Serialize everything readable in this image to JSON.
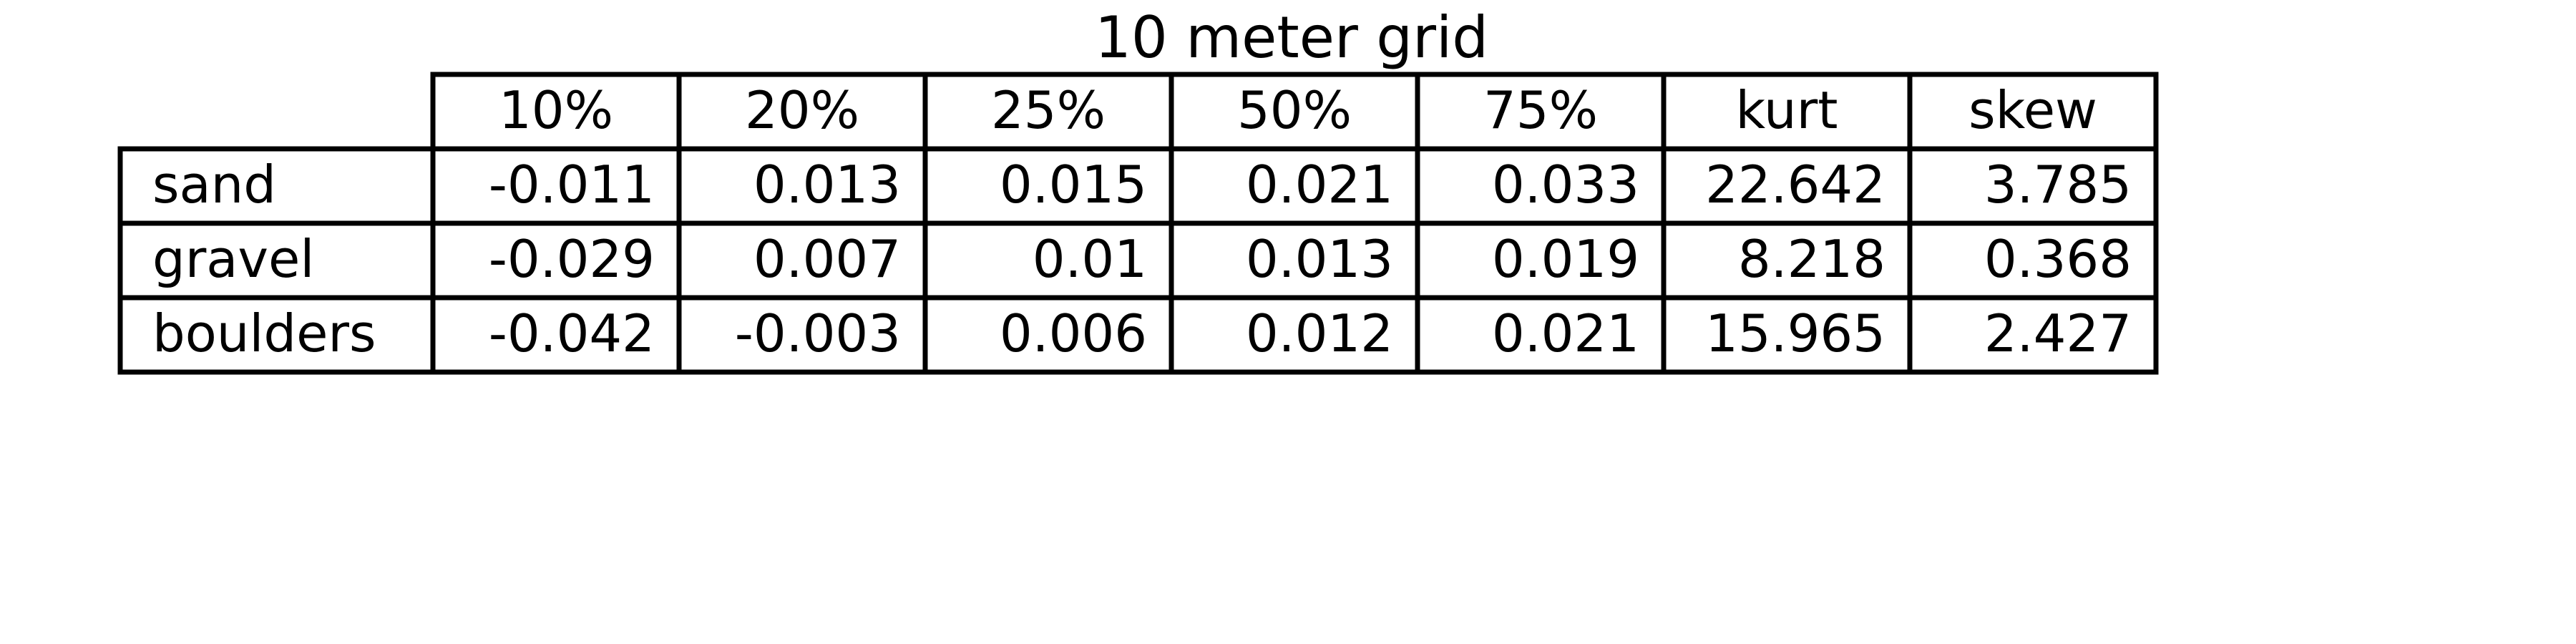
{
  "chart_data": {
    "type": "table",
    "title": "10 meter grid",
    "columns": [
      "10%",
      "20%",
      "25%",
      "50%",
      "75%",
      "kurt",
      "skew"
    ],
    "rows": [
      {
        "label": "sand",
        "values": [
          "-0.011",
          "0.013",
          "0.015",
          "0.021",
          "0.033",
          "22.642",
          "3.785"
        ]
      },
      {
        "label": "gravel",
        "values": [
          "-0.029",
          "0.007",
          "0.01",
          "0.013",
          "0.019",
          "8.218",
          "0.368"
        ]
      },
      {
        "label": "boulders",
        "values": [
          "-0.042",
          "-0.003",
          "0.006",
          "0.012",
          "0.021",
          "15.965",
          "2.427"
        ]
      }
    ]
  }
}
